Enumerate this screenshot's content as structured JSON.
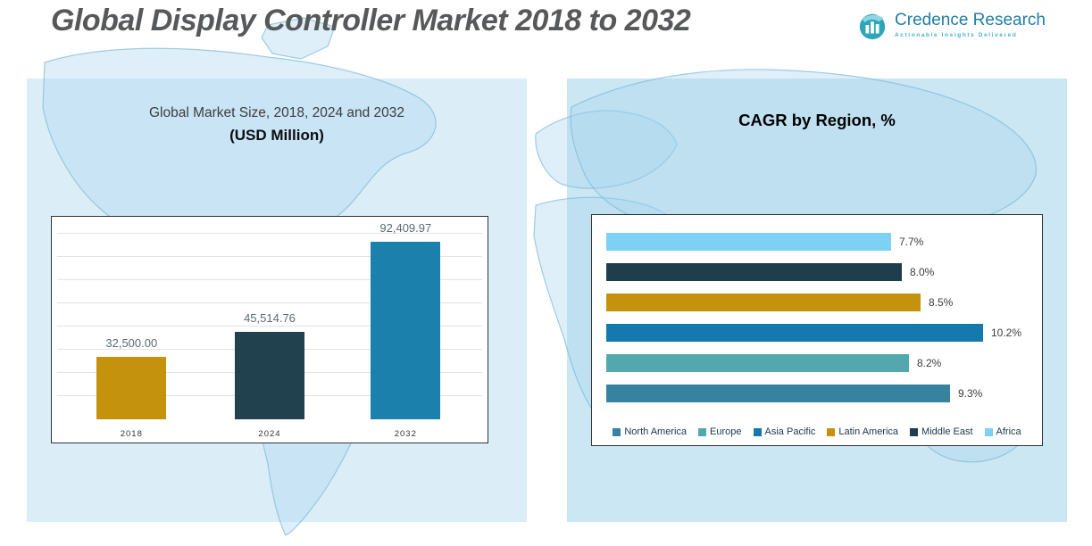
{
  "page": {
    "title": "Global Display Controller Market 2018 to 2032"
  },
  "logo": {
    "brand": "Credence Research",
    "tagline": "Actionable Insights Delivered"
  },
  "colors": {
    "panel_left": "#dbeef8",
    "panel_right": "#cbe7f3",
    "brand_teal": "#1f7fa3"
  },
  "chart_data": [
    {
      "type": "bar",
      "title": "Global Market Size, 2018, 2024 and 2032",
      "subtitle": "(USD Million)",
      "categories": [
        "2018",
        "2024",
        "2032"
      ],
      "values": [
        32500.0,
        45514.76,
        92409.97
      ],
      "labels": [
        "32,500.00",
        "45,514.76",
        "92,409.97"
      ],
      "bar_colors": [
        "#c5920e",
        "#21414f",
        "#1b80ab"
      ],
      "xlabel": "",
      "ylabel": "",
      "ylim": [
        0,
        100000
      ],
      "grid": true,
      "legend_position": "none"
    },
    {
      "type": "bar-horizontal",
      "title": "CAGR by Region, %",
      "categories": [
        "Africa",
        "Middle East",
        "Latin America",
        "Asia Pacific",
        "Europe",
        "North America"
      ],
      "values": [
        7.7,
        8.0,
        8.5,
        10.2,
        8.2,
        9.3
      ],
      "labels": [
        "7.7%",
        "8.0%",
        "8.5%",
        "10.2%",
        "8.2%",
        "9.3%"
      ],
      "bar_colors": [
        "#7cd1f4",
        "#1f3e4d",
        "#c5920e",
        "#1479ad",
        "#52a8ad",
        "#35839e"
      ],
      "xlabel": "",
      "ylabel": "",
      "xlim": [
        0,
        11
      ],
      "grid": false,
      "legend_position": "bottom",
      "legend": [
        {
          "label": "North America",
          "color": "#35839e"
        },
        {
          "label": "Europe",
          "color": "#52a8ad"
        },
        {
          "label": "Asia Pacific",
          "color": "#1479ad"
        },
        {
          "label": "Latin America",
          "color": "#c5920e"
        },
        {
          "label": "Middle East",
          "color": "#1f3e4d"
        },
        {
          "label": "Africa",
          "color": "#7cd1f4"
        }
      ]
    }
  ]
}
